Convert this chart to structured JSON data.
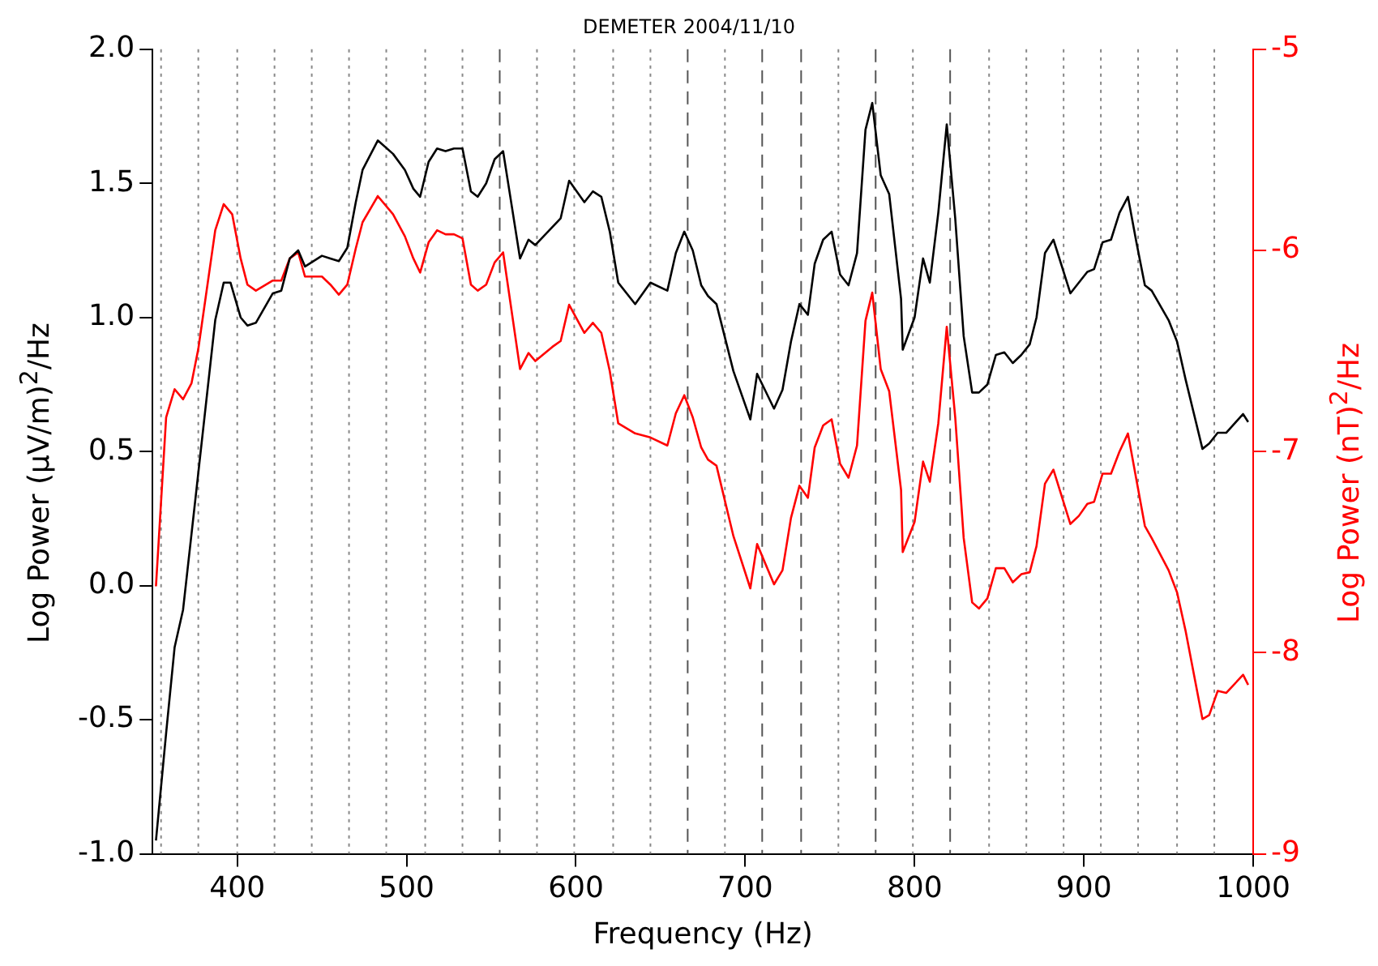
{
  "chart_data": {
    "type": "line",
    "title": "DEMETER 2004/11/10",
    "xlabel": "Frequency (Hz)",
    "ylabel": "Log Power (μV/m)$^{2}$/Hz",
    "y2label": "Log Power (nT)$^{2}$/Hz",
    "xlim": [
      350,
      1000
    ],
    "xticks": [
      400,
      500,
      600,
      700,
      800,
      900,
      1000
    ],
    "ylim": [
      -1,
      2
    ],
    "yticks": [
      {
        "value": -1,
        "label": "-1.0"
      },
      {
        "value": -0.5,
        "label": "-0.5"
      },
      {
        "value": 0,
        "label": "0.0"
      },
      {
        "value": 0.5,
        "label": "0.5"
      },
      {
        "value": 1,
        "label": "1.0"
      },
      {
        "value": 1.5,
        "label": "1.5"
      },
      {
        "value": 2,
        "label": "2.0"
      }
    ],
    "y2lim": [
      -9,
      -5
    ],
    "y2ticks": [
      -9,
      -8,
      -7,
      -6,
      -5
    ],
    "grid": false,
    "legend": false,
    "marker": "none",
    "line_style": "solid",
    "series": [
      {
        "color": "#000000",
        "x": [
          352,
          358,
          363,
          368,
          377,
          387,
          392,
          396,
          402,
          406,
          411,
          421,
          426,
          431,
          436,
          440,
          450,
          455,
          460,
          465,
          470,
          474,
          483,
          492,
          499,
          504,
          508,
          513,
          518,
          523,
          528,
          533,
          538,
          542,
          547,
          552,
          557,
          567,
          572,
          576,
          591,
          596,
          605,
          610,
          615,
          620,
          625,
          635,
          644,
          654,
          659,
          664,
          669,
          674,
          678,
          683,
          693,
          703,
          707,
          717,
          722,
          727,
          732,
          737,
          741,
          746,
          751,
          756,
          761,
          766,
          771,
          775,
          780,
          785,
          792,
          793,
          800,
          805,
          809,
          814,
          819,
          824,
          829,
          834,
          838,
          843,
          848,
          853,
          858,
          863,
          868,
          872,
          877,
          882,
          892,
          897,
          902,
          906,
          911,
          916,
          921,
          926,
          931,
          936,
          940,
          950,
          955,
          960,
          970,
          974,
          979,
          984,
          994,
          997
        ],
        "values": [
          -0.95,
          -0.55,
          -0.23,
          -0.09,
          0.42,
          0.99,
          1.13,
          1.13,
          1.0,
          0.97,
          0.98,
          1.09,
          1.1,
          1.22,
          1.25,
          1.19,
          1.23,
          1.22,
          1.21,
          1.26,
          1.43,
          1.55,
          1.66,
          1.61,
          1.55,
          1.48,
          1.45,
          1.58,
          1.63,
          1.62,
          1.63,
          1.63,
          1.47,
          1.45,
          1.5,
          1.59,
          1.62,
          1.22,
          1.29,
          1.27,
          1.37,
          1.51,
          1.43,
          1.47,
          1.45,
          1.32,
          1.13,
          1.05,
          1.13,
          1.1,
          1.24,
          1.32,
          1.25,
          1.12,
          1.08,
          1.05,
          0.8,
          0.62,
          0.79,
          0.66,
          0.73,
          0.91,
          1.05,
          1.01,
          1.2,
          1.29,
          1.32,
          1.16,
          1.12,
          1.24,
          1.7,
          1.8,
          1.53,
          1.46,
          1.07,
          0.88,
          1.0,
          1.22,
          1.13,
          1.39,
          1.72,
          1.37,
          0.93,
          0.72,
          0.72,
          0.75,
          0.86,
          0.87,
          0.83,
          0.86,
          0.9,
          1.0,
          1.24,
          1.29,
          1.09,
          1.13,
          1.17,
          1.18,
          1.28,
          1.29,
          1.39,
          1.45,
          1.28,
          1.12,
          1.1,
          0.99,
          0.91,
          0.77,
          0.51,
          0.53,
          0.57,
          0.57,
          0.64,
          0.61
        ]
      },
      {
        "color": "#ff0000",
        "axis": "y2",
        "x": [
          352,
          358,
          363,
          368,
          373,
          377,
          387,
          392,
          397,
          402,
          406,
          411,
          421,
          426,
          431,
          436,
          440,
          450,
          455,
          460,
          465,
          470,
          474,
          483,
          492,
          499,
          504,
          508,
          513,
          518,
          523,
          528,
          533,
          538,
          542,
          547,
          552,
          557,
          567,
          572,
          576,
          586,
          591,
          596,
          605,
          610,
          615,
          620,
          625,
          635,
          644,
          654,
          659,
          664,
          669,
          674,
          678,
          683,
          693,
          703,
          707,
          717,
          722,
          727,
          732,
          737,
          741,
          746,
          751,
          756,
          761,
          766,
          771,
          775,
          780,
          785,
          792,
          793,
          800,
          805,
          809,
          814,
          819,
          824,
          829,
          834,
          838,
          843,
          848,
          853,
          858,
          863,
          868,
          872,
          877,
          882,
          892,
          897,
          902,
          906,
          911,
          916,
          921,
          926,
          931,
          936,
          940,
          950,
          955,
          960,
          970,
          974,
          979,
          984,
          994,
          997
        ],
        "values": [
          -7.67,
          -6.83,
          -6.69,
          -6.74,
          -6.66,
          -6.49,
          -5.9,
          -5.77,
          -5.82,
          -6.04,
          -6.17,
          -6.2,
          -6.15,
          -6.15,
          -6.04,
          -6.01,
          -6.13,
          -6.13,
          -6.17,
          -6.22,
          -6.17,
          -5.99,
          -5.86,
          -5.73,
          -5.82,
          -5.93,
          -6.04,
          -6.11,
          -5.96,
          -5.9,
          -5.92,
          -5.92,
          -5.94,
          -6.17,
          -6.2,
          -6.17,
          -6.06,
          -6.01,
          -6.59,
          -6.51,
          -6.55,
          -6.48,
          -6.45,
          -6.27,
          -6.41,
          -6.36,
          -6.41,
          -6.6,
          -6.86,
          -6.91,
          -6.93,
          -6.97,
          -6.81,
          -6.72,
          -6.83,
          -6.98,
          -7.04,
          -7.07,
          -7.42,
          -7.68,
          -7.46,
          -7.66,
          -7.59,
          -7.33,
          -7.17,
          -7.23,
          -6.98,
          -6.87,
          -6.84,
          -7.06,
          -7.13,
          -6.97,
          -6.35,
          -6.21,
          -6.59,
          -6.7,
          -7.19,
          -7.5,
          -7.35,
          -7.05,
          -7.15,
          -6.86,
          -6.38,
          -6.83,
          -7.43,
          -7.75,
          -7.78,
          -7.73,
          -7.58,
          -7.58,
          -7.65,
          -7.61,
          -7.6,
          -7.47,
          -7.16,
          -7.09,
          -7.36,
          -7.32,
          -7.26,
          -7.25,
          -7.11,
          -7.11,
          -7.0,
          -6.91,
          -7.14,
          -7.37,
          -7.43,
          -7.59,
          -7.7,
          -7.89,
          -8.33,
          -8.31,
          -8.19,
          -8.2,
          -8.11,
          -8.16
        ]
      }
    ],
    "ref_lines": [
      {
        "axis": "x",
        "value": 355,
        "line_style": "dotted",
        "color": "#888888"
      },
      {
        "axis": "x",
        "value": 377,
        "line_style": "dotted",
        "color": "#888888"
      },
      {
        "axis": "x",
        "value": 400,
        "line_style": "dotted",
        "color": "#888888"
      },
      {
        "axis": "x",
        "value": 422,
        "line_style": "dotted",
        "color": "#888888"
      },
      {
        "axis": "x",
        "value": 444,
        "line_style": "dotted",
        "color": "#888888"
      },
      {
        "axis": "x",
        "value": 466,
        "line_style": "dotted",
        "color": "#888888"
      },
      {
        "axis": "x",
        "value": 488,
        "line_style": "dotted",
        "color": "#888888"
      },
      {
        "axis": "x",
        "value": 511,
        "line_style": "dotted",
        "color": "#888888"
      },
      {
        "axis": "x",
        "value": 533,
        "line_style": "dotted",
        "color": "#888888"
      },
      {
        "axis": "x",
        "value": 555,
        "line_style": "dashed",
        "color": "#555555"
      },
      {
        "axis": "x",
        "value": 577,
        "line_style": "dotted",
        "color": "#888888"
      },
      {
        "axis": "x",
        "value": 599,
        "line_style": "dotted",
        "color": "#888888"
      },
      {
        "axis": "x",
        "value": 622,
        "line_style": "dotted",
        "color": "#888888"
      },
      {
        "axis": "x",
        "value": 644,
        "line_style": "dotted",
        "color": "#888888"
      },
      {
        "axis": "x",
        "value": 666,
        "line_style": "dashed",
        "color": "#555555"
      },
      {
        "axis": "x",
        "value": 688,
        "line_style": "dotted",
        "color": "#888888"
      },
      {
        "axis": "x",
        "value": 710,
        "line_style": "dashed",
        "color": "#555555"
      },
      {
        "axis": "x",
        "value": 733,
        "line_style": "dashed",
        "color": "#555555"
      },
      {
        "axis": "x",
        "value": 755,
        "line_style": "dotted",
        "color": "#888888"
      },
      {
        "axis": "x",
        "value": 777,
        "line_style": "dashed",
        "color": "#555555"
      },
      {
        "axis": "x",
        "value": 799,
        "line_style": "dotted",
        "color": "#888888"
      },
      {
        "axis": "x",
        "value": 821,
        "line_style": "dashed",
        "color": "#555555"
      },
      {
        "axis": "x",
        "value": 844,
        "line_style": "dotted",
        "color": "#888888"
      },
      {
        "axis": "x",
        "value": 866,
        "line_style": "dotted",
        "color": "#888888"
      },
      {
        "axis": "x",
        "value": 888,
        "line_style": "dotted",
        "color": "#888888"
      },
      {
        "axis": "x",
        "value": 910,
        "line_style": "dotted",
        "color": "#888888"
      },
      {
        "axis": "x",
        "value": 932,
        "line_style": "dotted",
        "color": "#888888"
      },
      {
        "axis": "x",
        "value": 955,
        "line_style": "dotted",
        "color": "#888888"
      },
      {
        "axis": "x",
        "value": 977,
        "line_style": "dotted",
        "color": "#888888"
      }
    ]
  }
}
